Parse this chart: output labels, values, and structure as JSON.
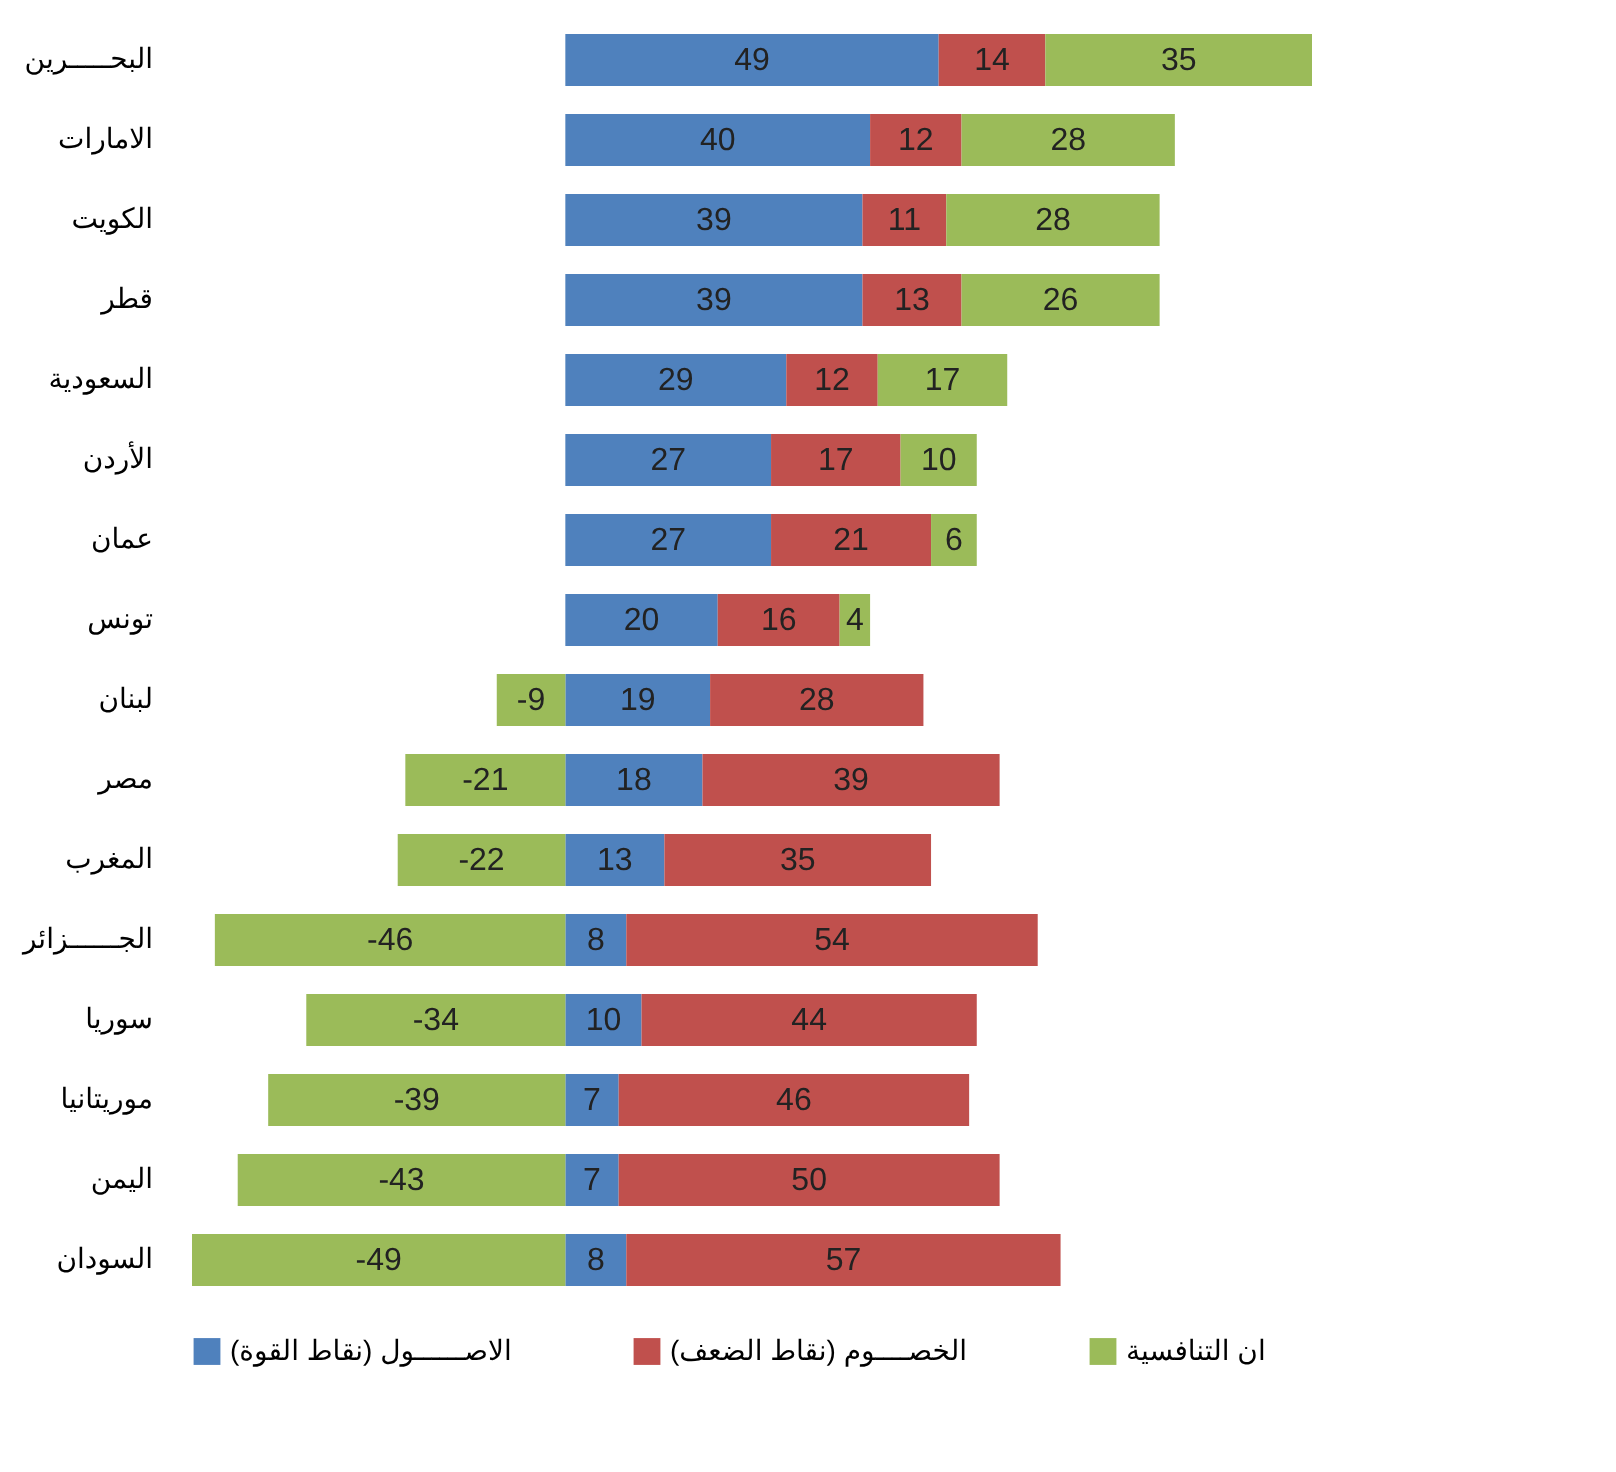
{
  "chart_data": {
    "type": "bar",
    "orientation": "horizontal",
    "stacked": true,
    "data_labels": true,
    "legend": "bottom",
    "tick_labels": "y",
    "categories": [
      "البحـــــرين",
      "الامارات",
      "الكويت",
      "قطر",
      "السعودية",
      "الأردن",
      "عمان",
      "تونس",
      "لبنان",
      "مصر",
      "المغرب",
      "الجــــــزائر",
      "سوريا",
      "موريتانيا",
      "اليمن",
      "السودان"
    ],
    "series": [
      {
        "name": "الاصــــــول (نقاط القوة)",
        "color": "#4f81bd",
        "values": [
          49,
          40,
          39,
          39,
          29,
          27,
          27,
          20,
          19,
          18,
          13,
          8,
          10,
          7,
          7,
          8
        ]
      },
      {
        "name": "الخصــــوم (نقاط الضعف)",
        "color": "#c0504d",
        "values": [
          14,
          12,
          11,
          13,
          12,
          17,
          21,
          16,
          28,
          39,
          35,
          54,
          44,
          46,
          50,
          57
        ]
      },
      {
        "name": "ان التنافسية",
        "color": "#9bbb59",
        "values": [
          35,
          28,
          28,
          26,
          17,
          10,
          6,
          4,
          -9,
          -21,
          -22,
          -46,
          -34,
          -39,
          -43,
          -49
        ]
      }
    ]
  }
}
